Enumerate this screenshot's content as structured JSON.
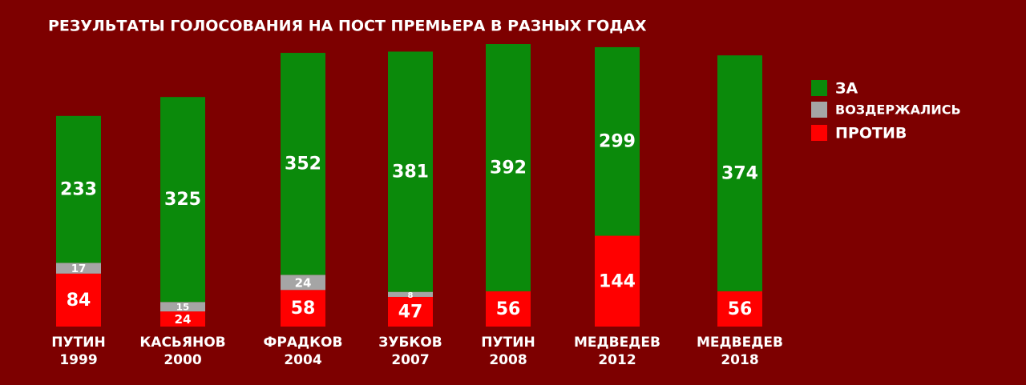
{
  "chart_data": {
    "type": "stacked-bar",
    "title": "РЕЗУЛЬТАТЫ ГОЛОСОВАНИЯ НА ПОСТ ПРЕМЬЕРА В РАЗНЫХ ГОДАХ",
    "categories": [
      "ПУТИН\n1999",
      "КАСЬЯНОВ\n2000",
      "ФРАДКОВ\n2004",
      "ЗУБКОВ\n2007",
      "ПУТИН\n2008",
      "МЕДВЕДЕВ\n2012",
      "МЕДВЕДЕВ\n2018"
    ],
    "series": [
      {
        "name": "ЗА",
        "color": "#0b8a0b",
        "values": [
          233,
          325,
          352,
          381,
          392,
          299,
          374
        ]
      },
      {
        "name": "ВОЗДЕРЖАЛИСЬ",
        "color": "#a5a5a5",
        "values": [
          17,
          15,
          24,
          8,
          null,
          null,
          null
        ]
      },
      {
        "name": "ПРОТИВ",
        "color": "#ff0000",
        "values": [
          84,
          24,
          58,
          47,
          56,
          144,
          56
        ]
      }
    ],
    "legend": "right"
  }
}
